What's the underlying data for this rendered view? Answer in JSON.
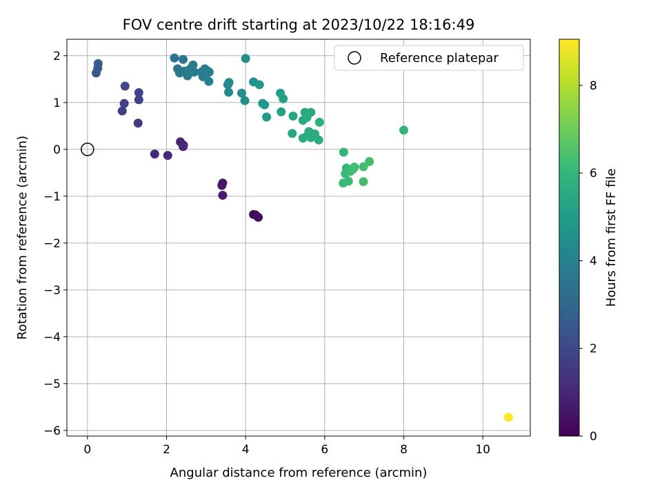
{
  "chart_data": {
    "type": "scatter",
    "title": "FOV centre drift starting at 2023/10/22 18:16:49",
    "xlabel": "Angular distance from reference (arcmin)",
    "ylabel": "Rotation from reference (arcmin)",
    "xlim": [
      -0.52,
      11.2
    ],
    "ylim": [
      -6.12,
      2.35
    ],
    "xticks": [
      0,
      2,
      4,
      6,
      8,
      10
    ],
    "yticks": [
      2,
      1,
      0,
      -1,
      -2,
      -3,
      -4,
      -5,
      -6
    ],
    "grid": true,
    "legend": {
      "position": "top-right",
      "entries": [
        "Reference platepar"
      ]
    },
    "reference_point": {
      "x": 0,
      "y": 0
    },
    "colorbar": {
      "label": "Hours from first FF file",
      "range": [
        0,
        9.05
      ],
      "ticks": [
        0,
        2,
        4,
        6,
        8
      ],
      "colormap": "viridis"
    },
    "series": [
      {
        "points": [
          {
            "x": 4.2,
            "y": -1.39,
            "c": 0.15
          },
          {
            "x": 4.25,
            "y": -1.4,
            "c": 0.2
          },
          {
            "x": 4.32,
            "y": -1.45,
            "c": 0.3
          },
          {
            "x": 3.42,
            "y": -0.72,
            "c": 0.55
          },
          {
            "x": 3.4,
            "y": -0.77,
            "c": 0.6
          },
          {
            "x": 3.42,
            "y": -0.98,
            "c": 0.65
          },
          {
            "x": 2.35,
            "y": 0.16,
            "c": 0.9
          },
          {
            "x": 2.42,
            "y": 0.06,
            "c": 0.95
          },
          {
            "x": 2.43,
            "y": 0.09,
            "c": 1.0
          },
          {
            "x": 1.7,
            "y": -0.1,
            "c": 1.05
          },
          {
            "x": 2.03,
            "y": -0.13,
            "c": 1.1
          },
          {
            "x": 1.28,
            "y": 0.56,
            "c": 1.65
          },
          {
            "x": 0.88,
            "y": 0.82,
            "c": 1.7
          },
          {
            "x": 0.93,
            "y": 0.98,
            "c": 1.75
          },
          {
            "x": 1.3,
            "y": 1.06,
            "c": 1.85
          },
          {
            "x": 1.3,
            "y": 1.21,
            "c": 1.9
          },
          {
            "x": 0.95,
            "y": 1.35,
            "c": 1.95
          },
          {
            "x": 0.22,
            "y": 1.63,
            "c": 2.5
          },
          {
            "x": 0.26,
            "y": 1.73,
            "c": 2.55
          },
          {
            "x": 0.27,
            "y": 1.83,
            "c": 2.6
          },
          {
            "x": 2.2,
            "y": 1.95,
            "c": 3.5
          },
          {
            "x": 2.42,
            "y": 1.92,
            "c": 3.55
          },
          {
            "x": 2.28,
            "y": 1.72,
            "c": 3.6
          },
          {
            "x": 2.33,
            "y": 1.63,
            "c": 3.6
          },
          {
            "x": 2.45,
            "y": 1.67,
            "c": 3.65
          },
          {
            "x": 2.53,
            "y": 1.57,
            "c": 3.65
          },
          {
            "x": 2.57,
            "y": 1.63,
            "c": 3.7
          },
          {
            "x": 2.6,
            "y": 1.72,
            "c": 3.7
          },
          {
            "x": 2.67,
            "y": 1.8,
            "c": 3.75
          },
          {
            "x": 2.7,
            "y": 1.65,
            "c": 3.75
          },
          {
            "x": 2.88,
            "y": 1.65,
            "c": 3.8
          },
          {
            "x": 2.92,
            "y": 1.55,
            "c": 3.85
          },
          {
            "x": 2.97,
            "y": 1.72,
            "c": 3.85
          },
          {
            "x": 3.03,
            "y": 1.68,
            "c": 3.9
          },
          {
            "x": 3.08,
            "y": 1.65,
            "c": 3.9
          },
          {
            "x": 3.07,
            "y": 1.45,
            "c": 3.95
          },
          {
            "x": 3.0,
            "y": 1.6,
            "c": 3.95
          },
          {
            "x": 3.58,
            "y": 1.43,
            "c": 4.3
          },
          {
            "x": 3.55,
            "y": 1.38,
            "c": 4.3
          },
          {
            "x": 3.57,
            "y": 1.22,
            "c": 4.35
          },
          {
            "x": 3.9,
            "y": 1.2,
            "c": 4.4
          },
          {
            "x": 3.98,
            "y": 1.04,
            "c": 4.45
          },
          {
            "x": 4.0,
            "y": 1.94,
            "c": 4.5
          },
          {
            "x": 4.2,
            "y": 1.44,
            "c": 4.7
          },
          {
            "x": 4.35,
            "y": 1.38,
            "c": 4.75
          },
          {
            "x": 4.43,
            "y": 0.98,
            "c": 4.8
          },
          {
            "x": 4.48,
            "y": 0.95,
            "c": 4.85
          },
          {
            "x": 4.53,
            "y": 0.69,
            "c": 4.9
          },
          {
            "x": 4.88,
            "y": 1.2,
            "c": 5.1
          },
          {
            "x": 4.95,
            "y": 1.08,
            "c": 5.15
          },
          {
            "x": 4.9,
            "y": 0.8,
            "c": 5.2
          },
          {
            "x": 5.2,
            "y": 0.71,
            "c": 5.3
          },
          {
            "x": 5.18,
            "y": 0.34,
            "c": 5.35
          },
          {
            "x": 5.45,
            "y": 0.62,
            "c": 5.4
          },
          {
            "x": 5.5,
            "y": 0.79,
            "c": 5.45
          },
          {
            "x": 5.55,
            "y": 0.68,
            "c": 5.5
          },
          {
            "x": 5.65,
            "y": 0.79,
            "c": 5.5
          },
          {
            "x": 5.45,
            "y": 0.24,
            "c": 5.55
          },
          {
            "x": 5.58,
            "y": 0.31,
            "c": 5.55
          },
          {
            "x": 5.6,
            "y": 0.38,
            "c": 5.6
          },
          {
            "x": 5.65,
            "y": 0.25,
            "c": 5.6
          },
          {
            "x": 5.75,
            "y": 0.33,
            "c": 5.65
          },
          {
            "x": 5.85,
            "y": 0.2,
            "c": 5.65
          },
          {
            "x": 5.87,
            "y": 0.58,
            "c": 5.7
          },
          {
            "x": 8.0,
            "y": 0.41,
            "c": 5.9
          },
          {
            "x": 6.48,
            "y": -0.06,
            "c": 6.0
          },
          {
            "x": 6.55,
            "y": -0.4,
            "c": 6.05
          },
          {
            "x": 6.52,
            "y": -0.52,
            "c": 6.1
          },
          {
            "x": 6.47,
            "y": -0.72,
            "c": 6.1
          },
          {
            "x": 6.6,
            "y": -0.68,
            "c": 6.15
          },
          {
            "x": 6.65,
            "y": -0.47,
            "c": 6.15
          },
          {
            "x": 6.72,
            "y": -0.42,
            "c": 6.2
          },
          {
            "x": 6.75,
            "y": -0.38,
            "c": 6.2
          },
          {
            "x": 6.98,
            "y": -0.37,
            "c": 6.25
          },
          {
            "x": 7.13,
            "y": -0.26,
            "c": 6.3
          },
          {
            "x": 6.98,
            "y": -0.69,
            "c": 6.3
          },
          {
            "x": 10.65,
            "y": -5.72,
            "c": 9.05
          }
        ]
      }
    ]
  }
}
